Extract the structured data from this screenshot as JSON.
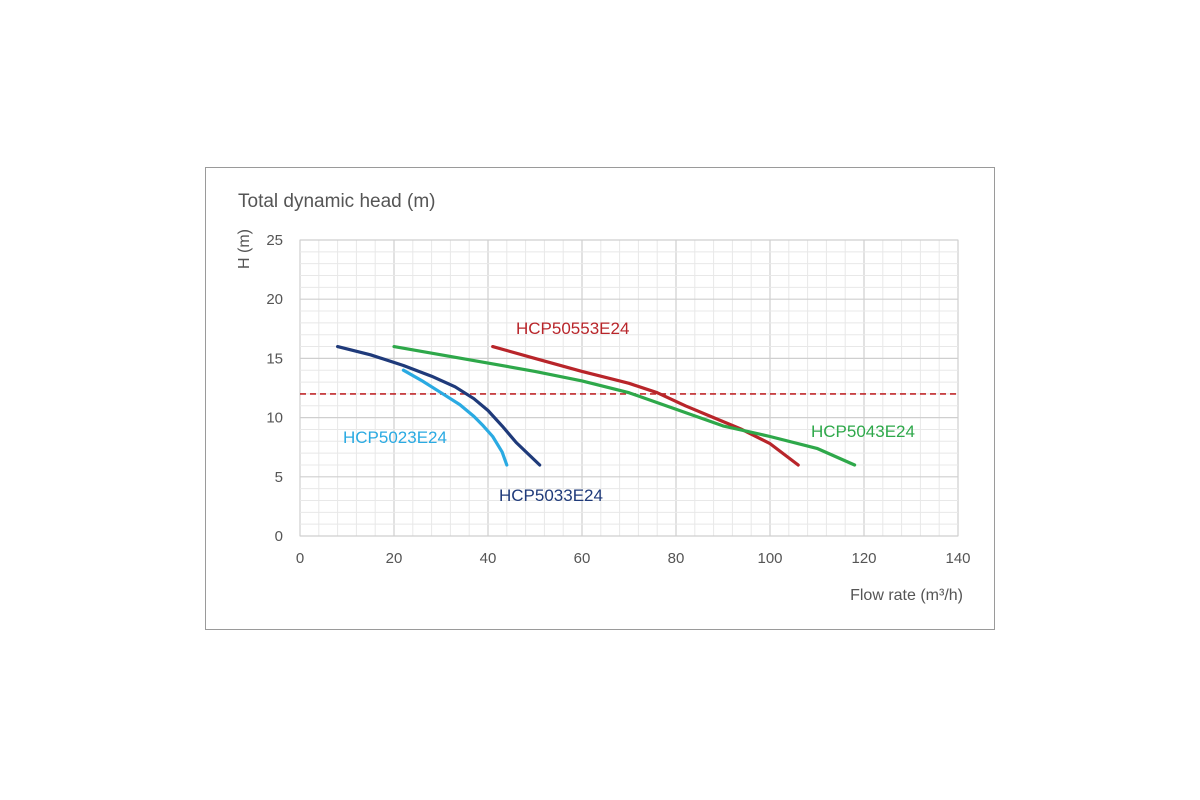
{
  "chart_data": {
    "type": "line",
    "title": "Total dynamic head (m)",
    "xlabel": "Flow rate (m³/h)",
    "ylabel": "H (m)",
    "xlim": [
      0,
      140
    ],
    "ylim": [
      0,
      25
    ],
    "x_ticks": [
      0,
      20,
      40,
      60,
      80,
      100,
      120,
      140
    ],
    "y_ticks": [
      0,
      5,
      10,
      15,
      20,
      25
    ],
    "grid": true,
    "reference_line": {
      "y": 12,
      "style": "dashed",
      "color": "#c0282b"
    },
    "series": [
      {
        "name": "HCP50553E24",
        "color": "#b8252a",
        "x": [
          41,
          50,
          60,
          70,
          76,
          82,
          88,
          94,
          100,
          106
        ],
        "y": [
          16,
          15,
          13.9,
          12.9,
          12.1,
          11,
          10,
          9,
          7.8,
          6
        ]
      },
      {
        "name": "HCP5043E24",
        "color": "#2ea84a",
        "x": [
          20,
          30,
          40,
          50,
          60,
          70,
          80,
          90,
          100,
          110,
          118
        ],
        "y": [
          16,
          15.3,
          14.6,
          13.9,
          13.1,
          12.1,
          10.7,
          9.3,
          8.4,
          7.4,
          6
        ]
      },
      {
        "name": "HCP5033E24",
        "color": "#1f3a7a",
        "x": [
          8,
          15,
          22,
          28,
          33,
          37,
          40,
          43,
          46,
          51
        ],
        "y": [
          16,
          15.3,
          14.4,
          13.5,
          12.6,
          11.6,
          10.6,
          9.3,
          7.9,
          6
        ]
      },
      {
        "name": "HCP5023E24",
        "color": "#2aaae2",
        "x": [
          22,
          26,
          30,
          34,
          37,
          39,
          41,
          43,
          44
        ],
        "y": [
          14,
          13.1,
          12.1,
          11.1,
          10.1,
          9.3,
          8.4,
          7.1,
          6
        ]
      }
    ]
  }
}
